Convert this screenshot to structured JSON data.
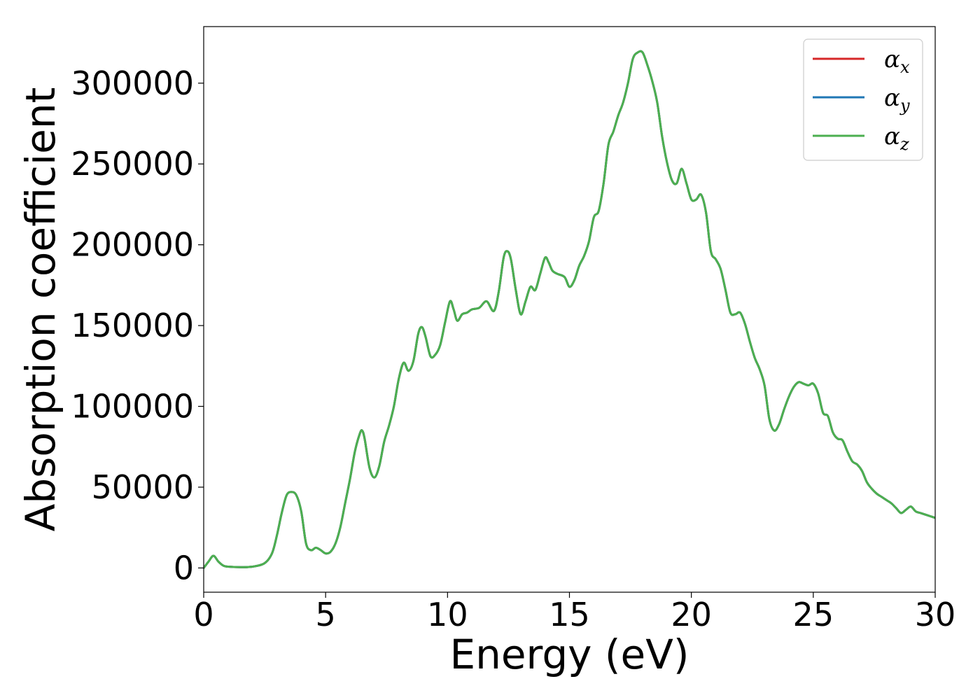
{
  "chart_data": {
    "type": "line",
    "xlabel": "Energy (eV)",
    "ylabel": "Absorption coefficient",
    "xlim": [
      0,
      30
    ],
    "ylim": [
      -15000,
      335000
    ],
    "xticks": [
      0,
      5,
      10,
      15,
      20,
      25,
      30
    ],
    "yticks": [
      0,
      50000,
      100000,
      150000,
      200000,
      250000,
      300000
    ],
    "grid": false,
    "legend_position": "top-right",
    "colors": {
      "alpha_x": "#d62728",
      "alpha_y": "#1f77b4",
      "alpha_z": "#4caf50"
    },
    "legend": [
      {
        "key": "alpha_x",
        "base": "α",
        "sub": "x"
      },
      {
        "key": "alpha_y",
        "base": "α",
        "sub": "y"
      },
      {
        "key": "alpha_z",
        "base": "α",
        "sub": "z"
      }
    ],
    "x": [
      0,
      0.2,
      0.4,
      0.6,
      0.8,
      1.0,
      1.5,
      2.0,
      2.5,
      2.8,
      3.0,
      3.2,
      3.4,
      3.6,
      3.8,
      4.0,
      4.2,
      4.4,
      4.6,
      4.8,
      5.0,
      5.2,
      5.4,
      5.6,
      5.8,
      6.0,
      6.2,
      6.4,
      6.5,
      6.6,
      6.8,
      7.0,
      7.2,
      7.4,
      7.6,
      7.8,
      8.0,
      8.2,
      8.4,
      8.6,
      8.8,
      8.95,
      9.1,
      9.3,
      9.5,
      9.7,
      9.9,
      10.1,
      10.25,
      10.4,
      10.6,
      10.8,
      11.0,
      11.3,
      11.6,
      11.9,
      12.1,
      12.3,
      12.45,
      12.6,
      12.8,
      13.0,
      13.2,
      13.4,
      13.6,
      13.8,
      14.0,
      14.15,
      14.3,
      14.5,
      14.8,
      15.0,
      15.2,
      15.4,
      15.6,
      15.8,
      16.0,
      16.2,
      16.4,
      16.6,
      16.8,
      17.0,
      17.2,
      17.4,
      17.6,
      17.8,
      18.0,
      18.2,
      18.4,
      18.6,
      18.8,
      19.0,
      19.2,
      19.4,
      19.6,
      19.8,
      20.0,
      20.2,
      20.4,
      20.6,
      20.8,
      21.0,
      21.2,
      21.4,
      21.6,
      21.8,
      22.0,
      22.2,
      22.4,
      22.6,
      22.8,
      23.0,
      23.2,
      23.4,
      23.6,
      23.8,
      24.0,
      24.2,
      24.4,
      24.6,
      24.8,
      25.0,
      25.2,
      25.4,
      25.6,
      25.8,
      26.0,
      26.2,
      26.4,
      26.6,
      26.8,
      27.0,
      27.2,
      27.4,
      27.6,
      27.8,
      28.0,
      28.2,
      28.4,
      28.6,
      28.8,
      29.0,
      29.2,
      29.4,
      29.6,
      29.8,
      30.0
    ],
    "series": [
      {
        "name": "α_x",
        "key": "alpha_x",
        "values": [
          0,
          4000,
          7500,
          4000,
          1500,
          800,
          500,
          800,
          3000,
          9000,
          20000,
          34000,
          45000,
          47000,
          45000,
          35000,
          15000,
          11000,
          12500,
          11000,
          9000,
          10000,
          15000,
          25000,
          40000,
          55000,
          72000,
          83000,
          85000,
          80000,
          62000,
          56000,
          63000,
          78000,
          88000,
          100000,
          117000,
          127000,
          122000,
          128000,
          145000,
          149000,
          143000,
          131000,
          132000,
          138000,
          152000,
          165000,
          160000,
          153000,
          157000,
          158000,
          160000,
          161000,
          165000,
          159000,
          171000,
          192000,
          196000,
          191000,
          172000,
          157000,
          165000,
          174000,
          172000,
          182000,
          192000,
          189000,
          184000,
          182000,
          180000,
          174000,
          178000,
          187000,
          193000,
          202000,
          217000,
          221000,
          238000,
          262000,
          270000,
          280000,
          288000,
          300000,
          315000,
          319000,
          319000,
          311000,
          301000,
          288000,
          267000,
          251000,
          240000,
          238000,
          247000,
          238000,
          228000,
          228000,
          231000,
          220000,
          196000,
          191000,
          185000,
          172000,
          158000,
          157000,
          158000,
          151000,
          140000,
          130000,
          123000,
          113000,
          92000,
          85000,
          89000,
          98000,
          106000,
          112000,
          115000,
          114000,
          113000,
          114000,
          108000,
          96000,
          94000,
          84000,
          80000,
          79000,
          72000,
          66000,
          64000,
          60000,
          53000,
          49000,
          46000,
          44000,
          42000,
          40000,
          37000,
          34000,
          36000,
          38000,
          35000,
          34000,
          33000,
          32000,
          31000
        ]
      },
      {
        "name": "α_y",
        "key": "alpha_y",
        "values": [
          0,
          4000,
          7500,
          4000,
          1500,
          800,
          500,
          800,
          3000,
          9000,
          20000,
          34000,
          45000,
          47000,
          45000,
          35000,
          15000,
          11000,
          12500,
          11000,
          9000,
          10000,
          15000,
          25000,
          40000,
          55000,
          72000,
          83000,
          85000,
          80000,
          62000,
          56000,
          63000,
          78000,
          88000,
          100000,
          117000,
          127000,
          122000,
          128000,
          145000,
          149000,
          143000,
          131000,
          132000,
          138000,
          152000,
          165000,
          160000,
          153000,
          157000,
          158000,
          160000,
          161000,
          165000,
          159000,
          171000,
          192000,
          196000,
          191000,
          172000,
          157000,
          165000,
          174000,
          172000,
          182000,
          192000,
          189000,
          184000,
          182000,
          180000,
          174000,
          178000,
          187000,
          193000,
          202000,
          217000,
          221000,
          238000,
          262000,
          270000,
          280000,
          288000,
          300000,
          315000,
          319000,
          319000,
          311000,
          301000,
          288000,
          267000,
          251000,
          240000,
          238000,
          247000,
          238000,
          228000,
          228000,
          231000,
          220000,
          196000,
          191000,
          185000,
          172000,
          158000,
          157000,
          158000,
          151000,
          140000,
          130000,
          123000,
          113000,
          92000,
          85000,
          89000,
          98000,
          106000,
          112000,
          115000,
          114000,
          113000,
          114000,
          108000,
          96000,
          94000,
          84000,
          80000,
          79000,
          72000,
          66000,
          64000,
          60000,
          53000,
          49000,
          46000,
          44000,
          42000,
          40000,
          37000,
          34000,
          36000,
          38000,
          35000,
          34000,
          33000,
          32000,
          31000
        ]
      },
      {
        "name": "α_z",
        "key": "alpha_z",
        "values": [
          0,
          4000,
          7500,
          4000,
          1500,
          800,
          500,
          800,
          3000,
          9000,
          20000,
          34000,
          45000,
          47000,
          45000,
          35000,
          15000,
          11000,
          12500,
          11000,
          9000,
          10000,
          15000,
          25000,
          40000,
          55000,
          72000,
          83000,
          85000,
          80000,
          62000,
          56000,
          63000,
          78000,
          88000,
          100000,
          117000,
          127000,
          122000,
          128000,
          145000,
          149000,
          143000,
          131000,
          132000,
          138000,
          152000,
          165000,
          160000,
          153000,
          157000,
          158000,
          160000,
          161000,
          165000,
          159000,
          171000,
          192000,
          196000,
          191000,
          172000,
          157000,
          165000,
          174000,
          172000,
          182000,
          192000,
          189000,
          184000,
          182000,
          180000,
          174000,
          178000,
          187000,
          193000,
          202000,
          217000,
          221000,
          238000,
          262000,
          270000,
          280000,
          288000,
          300000,
          315000,
          319000,
          319000,
          311000,
          301000,
          288000,
          267000,
          251000,
          240000,
          238000,
          247000,
          238000,
          228000,
          228000,
          231000,
          220000,
          196000,
          191000,
          185000,
          172000,
          158000,
          157000,
          158000,
          151000,
          140000,
          130000,
          123000,
          113000,
          92000,
          85000,
          89000,
          98000,
          106000,
          112000,
          115000,
          114000,
          113000,
          114000,
          108000,
          96000,
          94000,
          84000,
          80000,
          79000,
          72000,
          66000,
          64000,
          60000,
          53000,
          49000,
          46000,
          44000,
          42000,
          40000,
          37000,
          34000,
          36000,
          38000,
          35000,
          34000,
          33000,
          32000,
          31000
        ]
      }
    ]
  }
}
